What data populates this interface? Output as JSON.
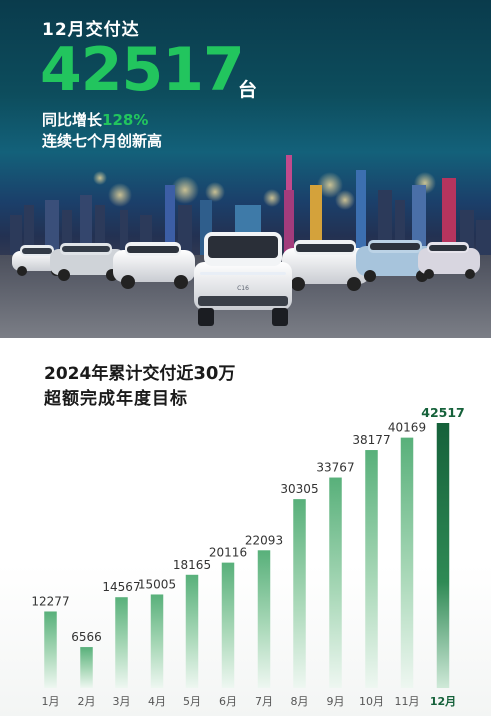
{
  "hero": {
    "title": "12月交付达",
    "big_number": "42517",
    "unit": "台",
    "yoy_prefix": "同比增长",
    "yoy_value": "128%",
    "streak": "连续七个月创新高",
    "car_badge": "C16"
  },
  "summary": {
    "line1_prefix": "2024年累计交付近",
    "line1_number": "30",
    "line1_suffix": "万",
    "line2": "超额完成年度目标"
  },
  "colors": {
    "accent_green": "#22c55e",
    "bar_dark": "#1e7a45",
    "highlight_bar": "#17643a"
  },
  "chart_data": {
    "type": "bar",
    "categories": [
      "1月",
      "2月",
      "3月",
      "4月",
      "5月",
      "6月",
      "7月",
      "8月",
      "9月",
      "10月",
      "11月",
      "12月"
    ],
    "values": [
      12277,
      6566,
      14567,
      15005,
      18165,
      20116,
      22093,
      30305,
      33767,
      38177,
      40169,
      42517
    ],
    "value_labels": [
      "12277",
      "6566",
      "14567",
      "15005",
      "18165",
      "20116",
      "22093",
      "30305",
      "33767",
      "38177",
      "40169",
      "42517"
    ],
    "highlight_index": 11,
    "title": "2024年累计交付近30万",
    "subtitle": "超额完成年度目标",
    "xlabel": "",
    "ylabel": "",
    "ylim": [
      0,
      42517
    ],
    "grid": false
  }
}
